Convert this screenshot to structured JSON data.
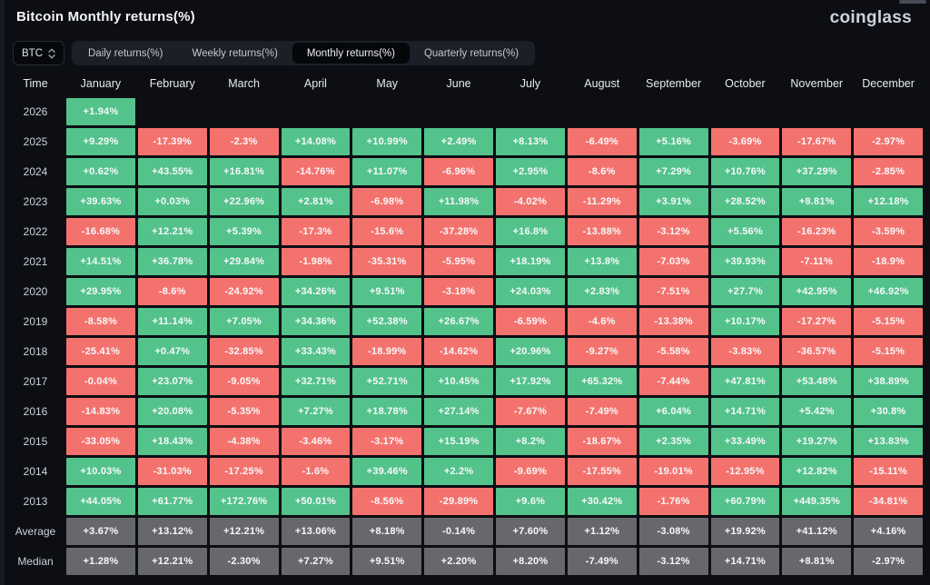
{
  "header": {
    "title": "Bitcoin Monthly returns(%)",
    "logo": "coinglass"
  },
  "controls": {
    "symbol_select": {
      "value": "BTC"
    },
    "tabs": [
      {
        "label": "Daily returns(%)",
        "active": false
      },
      {
        "label": "Weekly returns(%)",
        "active": false
      },
      {
        "label": "Monthly returns(%)",
        "active": true
      },
      {
        "label": "Quarterly returns(%)",
        "active": false
      }
    ]
  },
  "colors": {
    "green": "#53c28b",
    "red": "#f4726d",
    "neutral": "#67686c",
    "background": "#0c0e13"
  },
  "chart_data": {
    "type": "heatmap",
    "title": "Bitcoin Monthly returns(%)",
    "row_header": "Time",
    "columns": [
      "January",
      "February",
      "March",
      "April",
      "May",
      "June",
      "July",
      "August",
      "September",
      "October",
      "November",
      "December"
    ],
    "rows": [
      {
        "label": "2026",
        "values": [
          "+1.94%",
          null,
          null,
          null,
          null,
          null,
          null,
          null,
          null,
          null,
          null,
          null
        ]
      },
      {
        "label": "2025",
        "values": [
          "+9.29%",
          "-17.39%",
          "-2.3%",
          "+14.08%",
          "+10.99%",
          "+2.49%",
          "+8.13%",
          "-6.49%",
          "+5.16%",
          "-3.69%",
          "-17.67%",
          "-2.97%"
        ]
      },
      {
        "label": "2024",
        "values": [
          "+0.62%",
          "+43.55%",
          "+16.81%",
          "-14.76%",
          "+11.07%",
          "-6.96%",
          "+2.95%",
          "-8.6%",
          "+7.29%",
          "+10.76%",
          "+37.29%",
          "-2.85%"
        ]
      },
      {
        "label": "2023",
        "values": [
          "+39.63%",
          "+0.03%",
          "+22.96%",
          "+2.81%",
          "-6.98%",
          "+11.98%",
          "-4.02%",
          "-11.29%",
          "+3.91%",
          "+28.52%",
          "+8.81%",
          "+12.18%"
        ]
      },
      {
        "label": "2022",
        "values": [
          "-16.68%",
          "+12.21%",
          "+5.39%",
          "-17.3%",
          "-15.6%",
          "-37.28%",
          "+16.8%",
          "-13.88%",
          "-3.12%",
          "+5.56%",
          "-16.23%",
          "-3.59%"
        ]
      },
      {
        "label": "2021",
        "values": [
          "+14.51%",
          "+36.78%",
          "+29.84%",
          "-1.98%",
          "-35.31%",
          "-5.95%",
          "+18.19%",
          "+13.8%",
          "-7.03%",
          "+39.93%",
          "-7.11%",
          "-18.9%"
        ]
      },
      {
        "label": "2020",
        "values": [
          "+29.95%",
          "-8.6%",
          "-24.92%",
          "+34.26%",
          "+9.51%",
          "-3.18%",
          "+24.03%",
          "+2.83%",
          "-7.51%",
          "+27.7%",
          "+42.95%",
          "+46.92%"
        ]
      },
      {
        "label": "2019",
        "values": [
          "-8.58%",
          "+11.14%",
          "+7.05%",
          "+34.36%",
          "+52.38%",
          "+26.67%",
          "-6.59%",
          "-4.6%",
          "-13.38%",
          "+10.17%",
          "-17.27%",
          "-5.15%"
        ]
      },
      {
        "label": "2018",
        "values": [
          "-25.41%",
          "+0.47%",
          "-32.85%",
          "+33.43%",
          "-18.99%",
          "-14.62%",
          "+20.96%",
          "-9.27%",
          "-5.58%",
          "-3.83%",
          "-36.57%",
          "-5.15%"
        ]
      },
      {
        "label": "2017",
        "values": [
          "-0.04%",
          "+23.07%",
          "-9.05%",
          "+32.71%",
          "+52.71%",
          "+10.45%",
          "+17.92%",
          "+65.32%",
          "-7.44%",
          "+47.81%",
          "+53.48%",
          "+38.89%"
        ]
      },
      {
        "label": "2016",
        "values": [
          "-14.83%",
          "+20.08%",
          "-5.35%",
          "+7.27%",
          "+18.78%",
          "+27.14%",
          "-7.67%",
          "-7.49%",
          "+6.04%",
          "+14.71%",
          "+5.42%",
          "+30.8%"
        ]
      },
      {
        "label": "2015",
        "values": [
          "-33.05%",
          "+18.43%",
          "-4.38%",
          "-3.46%",
          "-3.17%",
          "+15.19%",
          "+8.2%",
          "-18.67%",
          "+2.35%",
          "+33.49%",
          "+19.27%",
          "+13.83%"
        ]
      },
      {
        "label": "2014",
        "values": [
          "+10.03%",
          "-31.03%",
          "-17.25%",
          "-1.6%",
          "+39.46%",
          "+2.2%",
          "-9.69%",
          "-17.55%",
          "-19.01%",
          "-12.95%",
          "+12.82%",
          "-15.11%"
        ]
      },
      {
        "label": "2013",
        "values": [
          "+44.05%",
          "+61.77%",
          "+172.76%",
          "+50.01%",
          "-8.56%",
          "-29.89%",
          "+9.6%",
          "+30.42%",
          "-1.76%",
          "+60.79%",
          "+449.35%",
          "-34.81%"
        ]
      },
      {
        "label": "Average",
        "neutral": true,
        "values": [
          "+3.67%",
          "+13.12%",
          "+12.21%",
          "+13.06%",
          "+8.18%",
          "-0.14%",
          "+7.60%",
          "+1.12%",
          "-3.08%",
          "+19.92%",
          "+41.12%",
          "+4.16%"
        ]
      },
      {
        "label": "Median",
        "neutral": true,
        "values": [
          "+1.28%",
          "+12.21%",
          "-2.30%",
          "+7.27%",
          "+9.51%",
          "+2.20%",
          "+8.20%",
          "-7.49%",
          "-3.12%",
          "+14.71%",
          "+8.81%",
          "-2.97%"
        ]
      }
    ]
  }
}
